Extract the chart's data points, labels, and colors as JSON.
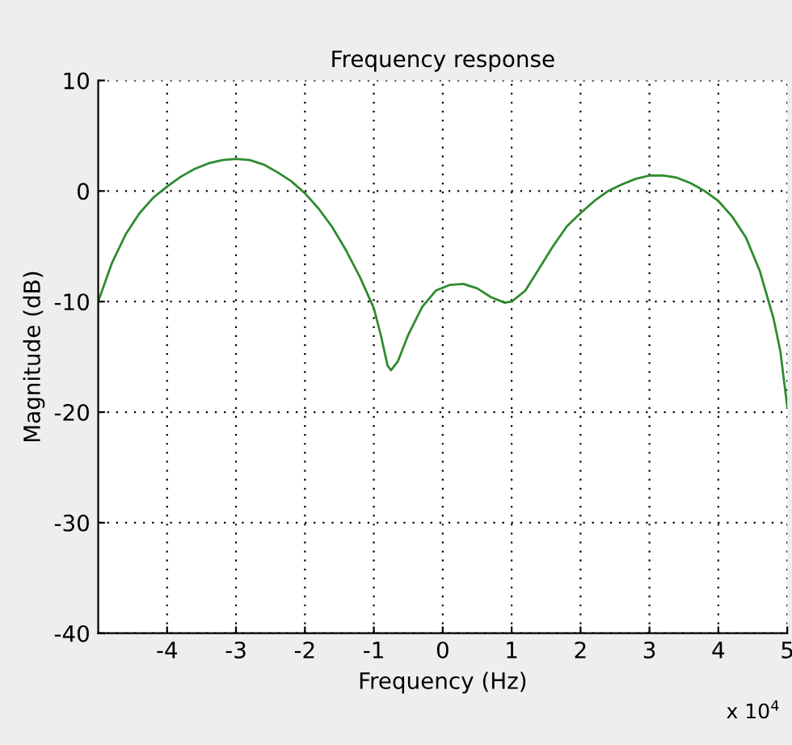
{
  "chart_data": {
    "type": "line",
    "title": "Frequency response",
    "xlabel": "Frequency (Hz)",
    "ylabel": "Magnitude (dB)",
    "annotations": [
      "x 10$^{4}$"
    ],
    "xlim": [
      -5,
      5
    ],
    "xticks": [
      -4,
      -3,
      -2,
      -1,
      0,
      1,
      2,
      3,
      4,
      5
    ],
    "ylim": [
      -40,
      10
    ],
    "yticks": [
      -40,
      -30,
      -20,
      -10,
      0,
      10
    ],
    "grid": true,
    "line_style": "solid",
    "marker": "none",
    "series": [
      {
        "color": "#2e8b2e",
        "x": [
          -5,
          -4.8,
          -4.6,
          -4.4,
          -4.2,
          -4.0,
          -3.8,
          -3.6,
          -3.4,
          -3.2,
          -3.0,
          -2.8,
          -2.6,
          -2.4,
          -2.2,
          -2.0,
          -1.8,
          -1.6,
          -1.4,
          -1.2,
          -1.0,
          -0.9,
          -0.8,
          -0.75,
          -0.65,
          -0.5,
          -0.3,
          -0.1,
          0.1,
          0.3,
          0.5,
          0.7,
          0.9,
          1.0,
          1.2,
          1.4,
          1.6,
          1.8,
          2.0,
          2.2,
          2.4,
          2.6,
          2.8,
          3.0,
          3.2,
          3.4,
          3.6,
          3.8,
          4.0,
          4.2,
          4.4,
          4.6,
          4.8,
          4.9,
          5.0
        ],
        "values": [
          -10,
          -6.5,
          -3.9,
          -2.0,
          -0.6,
          0.4,
          1.3,
          2.0,
          2.5,
          2.8,
          2.9,
          2.8,
          2.4,
          1.7,
          0.9,
          -0.2,
          -1.6,
          -3.3,
          -5.4,
          -7.8,
          -10.6,
          -13,
          -15.8,
          -16.2,
          -15.4,
          -13,
          -10.5,
          -9.0,
          -8.5,
          -8.4,
          -8.8,
          -9.6,
          -10.1,
          -10.0,
          -9.0,
          -7.0,
          -5.0,
          -3.2,
          -2.0,
          -0.9,
          0.0,
          0.6,
          1.1,
          1.4,
          1.4,
          1.2,
          0.7,
          0.0,
          -0.9,
          -2.3,
          -4.2,
          -7.2,
          -11.5,
          -14.5,
          -19.5
        ]
      }
    ]
  }
}
